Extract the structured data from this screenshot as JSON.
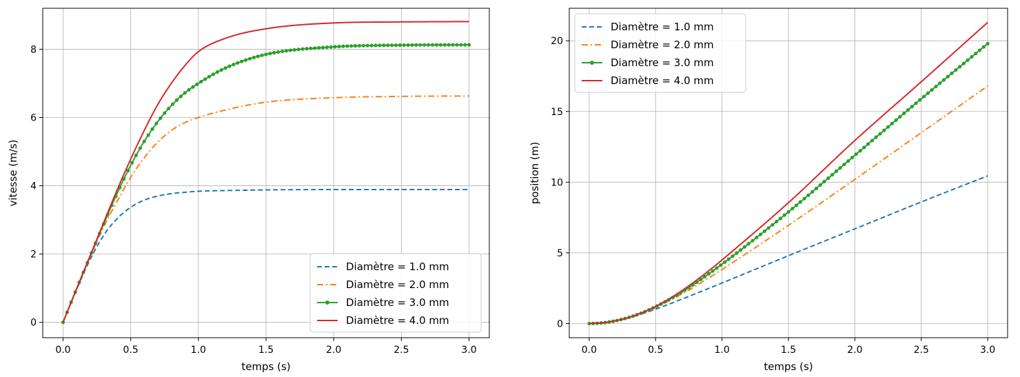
{
  "chart_data": [
    {
      "type": "line",
      "xlabel": "temps (s)",
      "ylabel": "vitesse (m/s)",
      "xlim": [
        -0.15,
        3.15
      ],
      "ylim": [
        -0.45,
        9.2
      ],
      "xticks": [
        0.0,
        0.5,
        1.0,
        1.5,
        2.0,
        2.5,
        3.0
      ],
      "xtick_labels": [
        "0.0",
        "0.5",
        "1.0",
        "1.5",
        "2.0",
        "2.5",
        "3.0"
      ],
      "yticks": [
        0,
        2,
        4,
        6,
        8
      ],
      "ytick_labels": [
        "0",
        "2",
        "4",
        "6",
        "8"
      ],
      "grid": true,
      "legend_position": "lower-right",
      "series": [
        {
          "name": "Diamètre = 1.0 mm",
          "color": "#1f77b4",
          "style": "dashed",
          "marker": false,
          "x": [
            0,
            0.1,
            0.2,
            0.3,
            0.4,
            0.5,
            0.6,
            0.7,
            0.8,
            0.9,
            1.0,
            1.2,
            1.5,
            2.0,
            2.5,
            3.0
          ],
          "y": [
            0,
            0.96,
            1.84,
            2.55,
            3.04,
            3.37,
            3.58,
            3.7,
            3.77,
            3.81,
            3.84,
            3.86,
            3.88,
            3.89,
            3.89,
            3.89
          ]
        },
        {
          "name": "Diamètre = 2.0 mm",
          "color": "#ff7f0e",
          "style": "dashdot",
          "marker": false,
          "x": [
            0,
            0.1,
            0.2,
            0.3,
            0.4,
            0.5,
            0.6,
            0.7,
            0.8,
            0.9,
            1.0,
            1.2,
            1.5,
            2.0,
            2.5,
            3.0
          ],
          "y": [
            0,
            0.98,
            1.92,
            2.8,
            3.55,
            4.25,
            4.82,
            5.28,
            5.62,
            5.85,
            6.0,
            6.22,
            6.45,
            6.58,
            6.62,
            6.63
          ]
        },
        {
          "name": "Diamètre = 3.0 mm",
          "color": "#2ca02c",
          "style": "solid",
          "marker": true,
          "x": [
            0,
            0.1,
            0.2,
            0.3,
            0.4,
            0.5,
            0.6,
            0.7,
            0.8,
            0.9,
            1.0,
            1.2,
            1.5,
            2.0,
            2.5,
            3.0
          ],
          "y": [
            0,
            0.98,
            1.94,
            2.88,
            3.78,
            4.6,
            5.3,
            5.88,
            6.35,
            6.72,
            7.0,
            7.45,
            7.85,
            8.07,
            8.12,
            8.13
          ]
        },
        {
          "name": "Diamètre = 4.0 mm",
          "color": "#d62728",
          "style": "solid",
          "marker": false,
          "x": [
            0,
            0.1,
            0.2,
            0.3,
            0.4,
            0.5,
            0.6,
            0.7,
            0.8,
            0.9,
            1.0,
            1.2,
            1.5,
            2.0,
            2.5,
            3.0
          ],
          "y": [
            0,
            0.98,
            1.95,
            2.92,
            3.88,
            4.78,
            5.62,
            6.38,
            7.0,
            7.52,
            7.93,
            8.32,
            8.6,
            8.77,
            8.8,
            8.81
          ]
        }
      ]
    },
    {
      "type": "line",
      "xlabel": "temps (s)",
      "ylabel": "position (m)",
      "xlim": [
        -0.15,
        3.15
      ],
      "ylim": [
        -1.0,
        22.3
      ],
      "xticks": [
        0.0,
        0.5,
        1.0,
        1.5,
        2.0,
        2.5,
        3.0
      ],
      "xtick_labels": [
        "0.0",
        "0.5",
        "1.0",
        "1.5",
        "2.0",
        "2.5",
        "3.0"
      ],
      "yticks": [
        0,
        5,
        10,
        15,
        20
      ],
      "ytick_labels": [
        "0",
        "5",
        "10",
        "15",
        "20"
      ],
      "grid": true,
      "legend_position": "upper-left",
      "series": [
        {
          "name": "Diamètre = 1.0 mm",
          "color": "#1f77b4",
          "style": "dashed",
          "marker": false,
          "x": [
            0,
            0.1,
            0.2,
            0.3,
            0.4,
            0.5,
            0.6,
            0.7,
            0.8,
            0.9,
            1.0,
            1.5,
            2.0,
            2.5,
            3.0
          ],
          "y": [
            0,
            0.05,
            0.19,
            0.42,
            0.7,
            1.02,
            1.37,
            1.74,
            2.11,
            2.49,
            2.87,
            4.8,
            6.7,
            8.6,
            10.45
          ]
        },
        {
          "name": "Diamètre = 2.0 mm",
          "color": "#ff7f0e",
          "style": "dashdot",
          "marker": false,
          "x": [
            0,
            0.1,
            0.2,
            0.3,
            0.4,
            0.5,
            0.6,
            0.7,
            0.8,
            0.9,
            1.0,
            1.5,
            2.0,
            2.5,
            3.0
          ],
          "y": [
            0,
            0.05,
            0.2,
            0.44,
            0.76,
            1.15,
            1.6,
            2.1,
            2.65,
            3.22,
            3.82,
            6.95,
            10.2,
            13.5,
            16.8
          ]
        },
        {
          "name": "Diamètre = 3.0 mm",
          "color": "#2ca02c",
          "style": "solid",
          "marker": true,
          "x": [
            0,
            0.1,
            0.2,
            0.3,
            0.4,
            0.5,
            0.6,
            0.7,
            0.8,
            0.9,
            1.0,
            1.5,
            2.0,
            2.5,
            3.0
          ],
          "y": [
            0,
            0.05,
            0.2,
            0.44,
            0.77,
            1.19,
            1.69,
            2.25,
            2.86,
            3.52,
            4.2,
            7.9,
            11.9,
            15.9,
            19.8
          ]
        },
        {
          "name": "Diamètre = 4.0 mm",
          "color": "#d62728",
          "style": "solid",
          "marker": false,
          "x": [
            0,
            0.1,
            0.2,
            0.3,
            0.4,
            0.5,
            0.6,
            0.7,
            0.8,
            0.9,
            1.0,
            1.5,
            2.0,
            2.5,
            3.0
          ],
          "y": [
            0,
            0.05,
            0.2,
            0.44,
            0.78,
            1.21,
            1.74,
            2.34,
            3.01,
            3.73,
            4.5,
            8.55,
            12.95,
            17.1,
            21.3
          ]
        }
      ]
    }
  ]
}
